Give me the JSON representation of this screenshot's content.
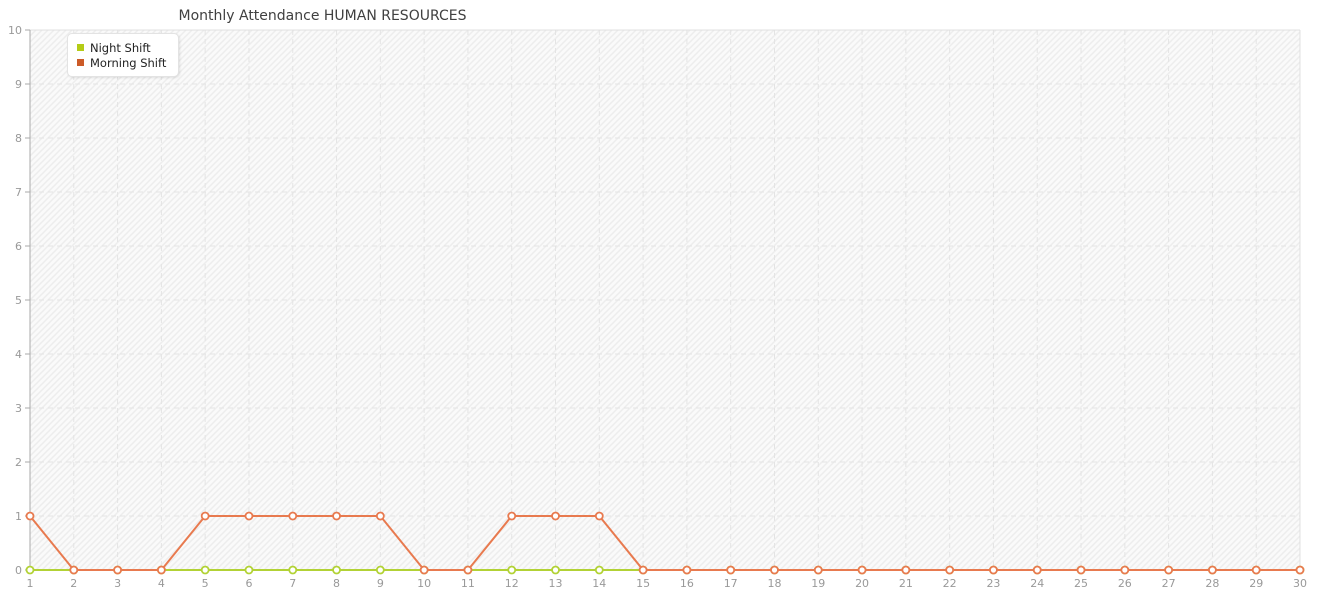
{
  "chart": {
    "title": "Monthly Attendance HUMAN RESOURCES"
  },
  "colors": {
    "title_text": "#404040",
    "axis_line": "#aaaaaa",
    "grid_line": "#e4e4e4",
    "plot_border": "#e0e0e0",
    "tick_label": "#999999",
    "hatch_background": "#fafafa",
    "hatch_stripe": "#ededed",
    "marker_fill": "#ffffff",
    "night_shift": "#b2d235",
    "night_shift_swatch": "#b4cc16",
    "morning_shift": "#e87a4f",
    "morning_shift_swatch": "#cc5b28"
  },
  "chart_data": {
    "type": "line",
    "title": "Monthly Attendance HUMAN RESOURCES",
    "xlabel": "",
    "ylabel": "",
    "x": [
      1,
      2,
      3,
      4,
      5,
      6,
      7,
      8,
      9,
      10,
      11,
      12,
      13,
      14,
      15,
      16,
      17,
      18,
      19,
      20,
      21,
      22,
      23,
      24,
      25,
      26,
      27,
      28,
      29,
      30
    ],
    "xticks": [
      "1",
      "2",
      "3",
      "4",
      "5",
      "6",
      "7",
      "8",
      "9",
      "10",
      "11",
      "12",
      "13",
      "14",
      "15",
      "16",
      "17",
      "18",
      "19",
      "20",
      "21",
      "22",
      "23",
      "24",
      "25",
      "26",
      "27",
      "28",
      "29",
      "30"
    ],
    "ylim": [
      0,
      10
    ],
    "yticks": [
      "0",
      "1",
      "2",
      "3",
      "4",
      "5",
      "6",
      "7",
      "8",
      "9",
      "10"
    ],
    "grid": true,
    "grid_style": "dashed",
    "legend_position": "top-left",
    "marker": "circle",
    "series": [
      {
        "name": "Night Shift",
        "color": "#b2d235",
        "swatch_color": "#b4cc16",
        "values": [
          0,
          0,
          0,
          0,
          0,
          0,
          0,
          0,
          0,
          0,
          0,
          0,
          0,
          0,
          0,
          0,
          0,
          0,
          0,
          0,
          0,
          0,
          0,
          0,
          0,
          0,
          0,
          0,
          0,
          0
        ]
      },
      {
        "name": "Morning Shift",
        "color": "#e87a4f",
        "swatch_color": "#cc5b28",
        "values": [
          1,
          0,
          0,
          0,
          1,
          1,
          1,
          1,
          1,
          0,
          0,
          1,
          1,
          1,
          0,
          0,
          0,
          0,
          0,
          0,
          0,
          0,
          0,
          0,
          0,
          0,
          0,
          0,
          0,
          0
        ]
      }
    ]
  }
}
